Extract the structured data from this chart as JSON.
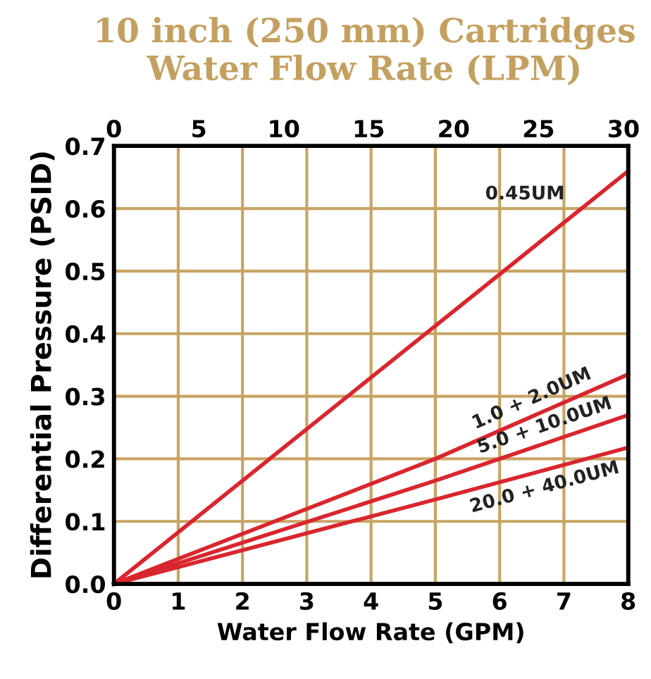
{
  "chart_data": {
    "type": "line",
    "title": "10 inch (250 mm) Cartridges\nWater Flow Rate (LPM)",
    "xlabel": "Water Flow Rate (GPM)",
    "ylabel": "Differential Pressure (PSID)",
    "x": [
      0,
      4,
      8
    ],
    "series": [
      {
        "name": "0.45UM",
        "color": "#d9262e",
        "values": [
          0,
          0.33,
          0.66
        ]
      },
      {
        "name": "1.0 + 2.0UM",
        "color": "#d9262e",
        "x": [
          0,
          5,
          8
        ],
        "values": [
          0,
          0.2,
          0.335
        ]
      },
      {
        "name": "5.0 + 10.0UM",
        "color": "#d9262e",
        "x": [
          0,
          5,
          8
        ],
        "values": [
          0,
          0.165,
          0.27
        ]
      },
      {
        "name": "20.0 + 40.0UM",
        "color": "#d9262e",
        "x": [
          0,
          5,
          8
        ],
        "values": [
          0,
          0.135,
          0.218
        ]
      }
    ],
    "xlim": [
      0,
      8
    ],
    "xticks": [
      0,
      1,
      2,
      3,
      4,
      5,
      6,
      7,
      8
    ],
    "ylim": [
      0,
      0.7
    ],
    "yticks": [
      {
        "value": 0,
        "label": "0.0"
      },
      0.1,
      0.2,
      0.3,
      0.4,
      0.5,
      0.6,
      0.7
    ],
    "x2lim": [
      0,
      30.28
    ],
    "x2ticks": [
      0,
      5,
      10,
      15,
      20,
      25,
      30
    ],
    "grid": true,
    "marker": "none",
    "line_style": "solid"
  }
}
